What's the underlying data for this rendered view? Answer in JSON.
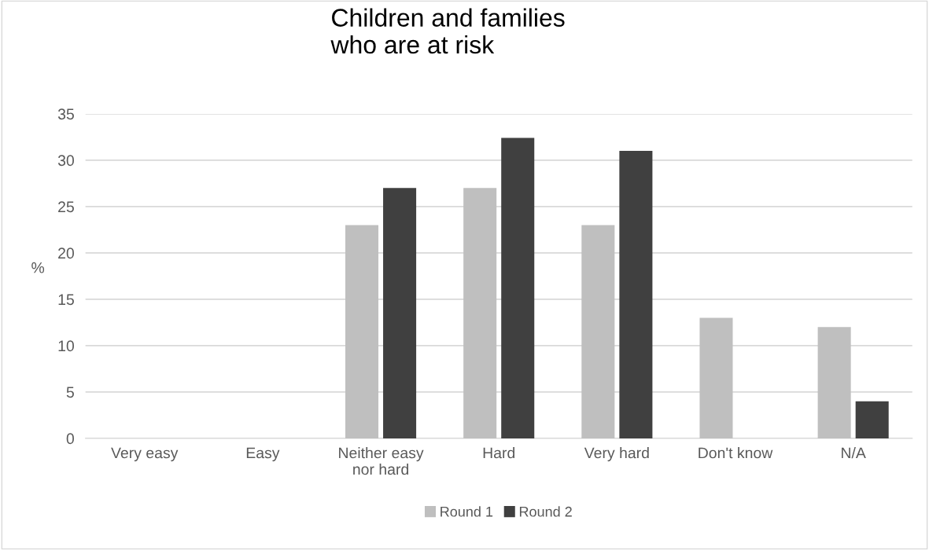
{
  "chart_data": {
    "type": "bar",
    "title": "Children and families\nwho are at risk",
    "ylabel": "%",
    "categories": [
      "Very easy",
      "Easy",
      "Neither easy\nnor hard",
      "Hard",
      "Very hard",
      "Don't know",
      "N/A"
    ],
    "series": [
      {
        "name": "Round 1",
        "color": "#bfbfbf",
        "values": [
          0,
          0,
          23,
          27,
          23,
          13,
          12
        ]
      },
      {
        "name": "Round 2",
        "color": "#404040",
        "values": [
          0,
          0,
          27,
          32.4,
          31,
          0,
          4
        ]
      }
    ],
    "ylim": [
      0,
      35
    ],
    "yticks": [
      0,
      5,
      10,
      15,
      20,
      25,
      30,
      35
    ],
    "grid": "y",
    "legend": "bottom"
  }
}
